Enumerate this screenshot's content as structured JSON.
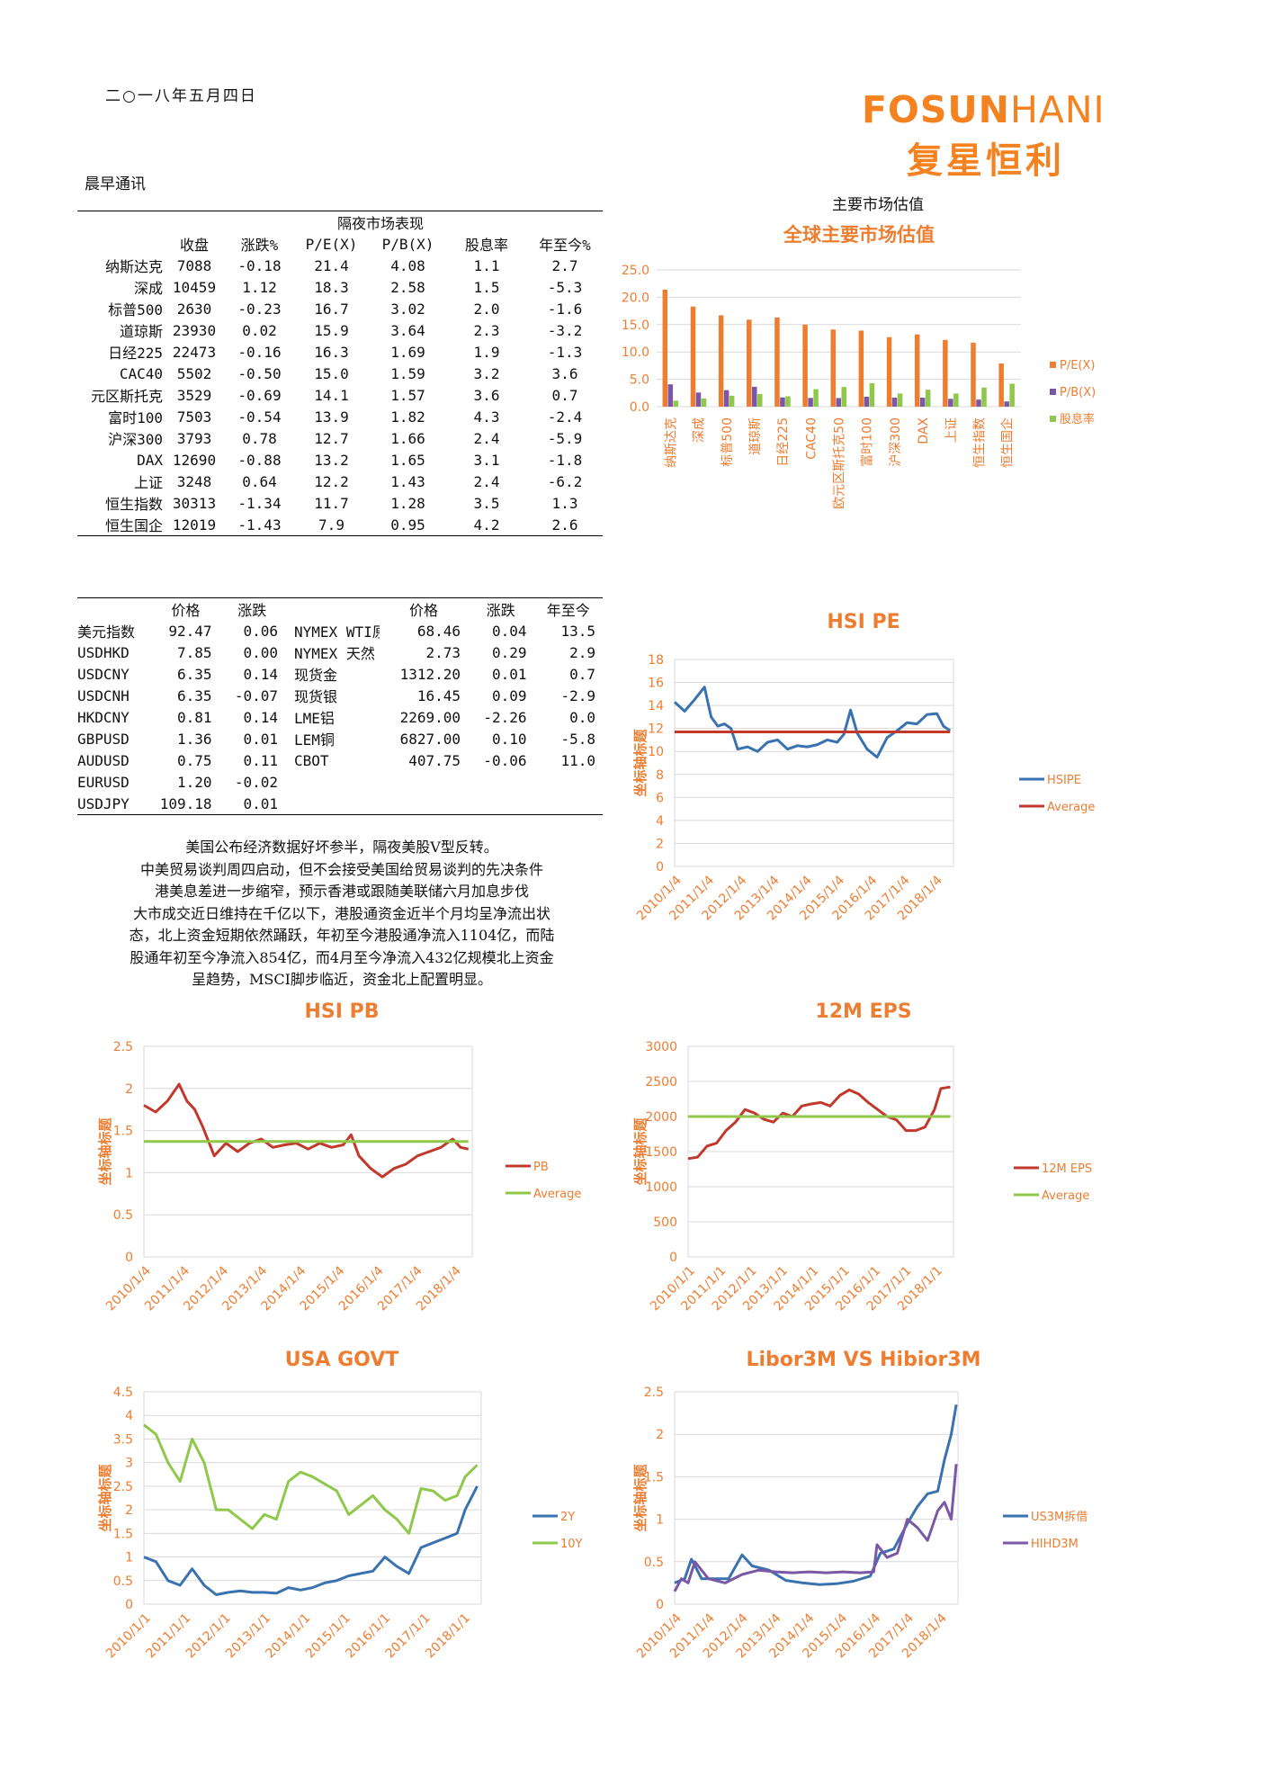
{
  "header": {
    "date": "二○一八年五月四日",
    "logo_en_bold": "FOSUN",
    "logo_en_thin": "HANI",
    "logo_cn": "复星恒利",
    "report_name": "晨早通讯"
  },
  "overnight": {
    "title": "隔夜市场表现",
    "columns": [
      "收盘",
      "涨跌%",
      "P/E(X)",
      "P/B(X)",
      "股息率",
      "年至今%"
    ],
    "rows": [
      [
        "纳斯达克",
        "7088",
        "-0.18",
        "21.4",
        "4.08",
        "1.1",
        "2.7"
      ],
      [
        "深成",
        "10459",
        "1.12",
        "18.3",
        "2.58",
        "1.5",
        "-5.3"
      ],
      [
        "标普500",
        "2630",
        "-0.23",
        "16.7",
        "3.02",
        "2.0",
        "-1.6"
      ],
      [
        "道琼斯",
        "23930",
        "0.02",
        "15.9",
        "3.64",
        "2.3",
        "-3.2"
      ],
      [
        "日经225",
        "22473",
        "-0.16",
        "16.3",
        "1.69",
        "1.9",
        "-1.3"
      ],
      [
        "CAC40",
        "5502",
        "-0.50",
        "15.0",
        "1.59",
        "3.2",
        "3.6"
      ],
      [
        "元区斯托克",
        "3529",
        "-0.69",
        "14.1",
        "1.57",
        "3.6",
        "0.7"
      ],
      [
        "富时100",
        "7503",
        "-0.54",
        "13.9",
        "1.82",
        "4.3",
        "-2.4"
      ],
      [
        "沪深300",
        "3793",
        "0.78",
        "12.7",
        "1.66",
        "2.4",
        "-5.9"
      ],
      [
        "DAX",
        "12690",
        "-0.88",
        "13.2",
        "1.65",
        "3.1",
        "-1.8"
      ],
      [
        "上证",
        "3248",
        "0.64",
        "12.2",
        "1.43",
        "2.4",
        "-6.2"
      ],
      [
        "恒生指数",
        "30313",
        "-1.34",
        "11.7",
        "1.28",
        "3.5",
        "1.3"
      ],
      [
        "恒生国企",
        "12019",
        "-1.43",
        "7.9",
        "0.95",
        "4.2",
        "2.6"
      ]
    ]
  },
  "fx": {
    "columns": [
      "价格",
      "涨跌",
      "价格",
      "涨跌",
      "年至今"
    ],
    "rows": [
      [
        "美元指数",
        "92.47",
        "0.06",
        "NYMEX WTI原",
        "68.46",
        "0.04",
        "13.5"
      ],
      [
        "USDHKD",
        "7.85",
        "0.00",
        "NYMEX 天然",
        "2.73",
        "0.29",
        "2.9"
      ],
      [
        "USDCNY",
        "6.35",
        "0.14",
        "现货金",
        "1312.20",
        "0.01",
        "0.7"
      ],
      [
        "USDCNH",
        "6.35",
        "-0.07",
        "现货银",
        "16.45",
        "0.09",
        "-2.9"
      ],
      [
        "HKDCNY",
        "0.81",
        "0.14",
        "LME铝",
        "2269.00",
        "-2.26",
        "0.0"
      ],
      [
        "GBPUSD",
        "1.36",
        "0.01",
        "LEM铜",
        "6827.00",
        "0.10",
        "-5.8"
      ],
      [
        "AUDUSD",
        "0.75",
        "0.11",
        "CBOT",
        "407.75",
        "-0.06",
        "11.0"
      ],
      [
        "EURUSD",
        "1.20",
        "-0.02",
        "",
        "",
        "",
        ""
      ],
      [
        "USDJPY",
        "109.18",
        "0.01",
        "",
        "",
        "",
        ""
      ]
    ]
  },
  "commentary": [
    "美国公布经济数据好坏参半，隔夜美股V型反转。",
    "中美贸易谈判周四启动，但不会接受美国给贸易谈判的先决条件",
    "港美息差进一步缩窄，预示香港或跟随美联储六月加息步伐",
    "大市成交近日维持在千亿以下，港股通资金近半个月均呈净流出状",
    "态，北上资金短期依然踊跃，年初至今港股通净流入1104亿，而陆",
    "股通年初至今净流入854亿，而4月至今净流入432亿规模北上资金",
    "呈趋势，MSCI脚步临近，资金北上配置明显。"
  ],
  "section_title": "主要市场估值",
  "colors": {
    "orange": "#ed7d31",
    "purple": "#7a58a6",
    "green": "#8fc84b",
    "blue": "#3a72b0",
    "red": "#c0392b",
    "title": "#ed7d31",
    "grid": "#d9d9d9"
  },
  "chart_data": [
    {
      "id": "valuation",
      "type": "bar",
      "title": "全球主要市场估值",
      "categories": [
        "纳斯达克",
        "深成",
        "标普500",
        "道琼斯",
        "日经225",
        "CAC40",
        "欧元区斯托克50",
        "富时100",
        "沪深300",
        "DAX",
        "上证",
        "恒生指数",
        "恒生国企"
      ],
      "series": [
        {
          "name": "P/E(X)",
          "values": [
            21.4,
            18.3,
            16.7,
            15.9,
            16.3,
            15.0,
            14.1,
            13.9,
            12.7,
            13.2,
            12.2,
            11.7,
            7.9
          ]
        },
        {
          "name": "P/B(X)",
          "values": [
            4.08,
            2.58,
            3.02,
            3.64,
            1.69,
            1.59,
            1.57,
            1.82,
            1.66,
            1.65,
            1.43,
            1.28,
            0.95
          ]
        },
        {
          "name": "股息率",
          "values": [
            1.1,
            1.5,
            2.0,
            2.3,
            1.9,
            3.2,
            3.6,
            4.3,
            2.4,
            3.1,
            2.4,
            3.5,
            4.2
          ]
        }
      ],
      "ylim": [
        0,
        25
      ],
      "yticks": [
        "0.0",
        "5.0",
        "10.0",
        "15.0",
        "20.0",
        "25.0"
      ],
      "legend": "right"
    },
    {
      "id": "hsipe",
      "type": "line",
      "title": "HSI PE",
      "ylabel": "坐标轴标题",
      "xticks": [
        "2010/1/4",
        "2011/1/4",
        "2012/1/4",
        "2013/1/4",
        "2014/1/4",
        "2015/1/4",
        "2016/1/4",
        "2017/1/4",
        "2018/1/4"
      ],
      "ylim": [
        0,
        18
      ],
      "yticks": [
        "0",
        "2",
        "4",
        "6",
        "8",
        "10",
        "12",
        "14",
        "16",
        "18"
      ],
      "series": [
        {
          "name": "HSIPE",
          "x": [
            2010.0,
            2010.3,
            2010.6,
            2010.9,
            2011.1,
            2011.3,
            2011.5,
            2011.7,
            2011.9,
            2012.2,
            2012.5,
            2012.8,
            2013.1,
            2013.4,
            2013.7,
            2014.0,
            2014.3,
            2014.6,
            2014.9,
            2015.1,
            2015.3,
            2015.5,
            2015.8,
            2016.1,
            2016.4,
            2016.7,
            2017.0,
            2017.3,
            2017.6,
            2017.9,
            2018.1,
            2018.3
          ],
          "y": [
            14.3,
            13.5,
            14.5,
            15.6,
            13.0,
            12.2,
            12.4,
            12.0,
            10.2,
            10.4,
            10.0,
            10.8,
            11.0,
            10.2,
            10.5,
            10.4,
            10.6,
            11.0,
            10.8,
            11.5,
            13.6,
            11.6,
            10.2,
            9.5,
            11.2,
            11.8,
            12.5,
            12.4,
            13.2,
            13.3,
            12.2,
            11.8
          ]
        },
        {
          "name": "Average",
          "x": [
            2010.0,
            2018.3
          ],
          "y": [
            11.7,
            11.7
          ]
        }
      ],
      "legend": "right"
    },
    {
      "id": "hsipb",
      "type": "line",
      "title": "HSI PB",
      "ylabel": "坐标轴标题",
      "xticks": [
        "2010/1/4",
        "2011/1/4",
        "2012/1/4",
        "2013/1/4",
        "2014/1/4",
        "2015/1/4",
        "2016/1/4",
        "2017/1/4",
        "2018/1/4"
      ],
      "ylim": [
        0,
        2.5
      ],
      "yticks": [
        "0",
        "0.5",
        "1",
        "1.5",
        "2",
        "2.5"
      ],
      "series": [
        {
          "name": "PB",
          "x": [
            2010.0,
            2010.3,
            2010.6,
            2010.9,
            2011.1,
            2011.3,
            2011.5,
            2011.8,
            2012.1,
            2012.4,
            2012.7,
            2013.0,
            2013.3,
            2013.6,
            2013.9,
            2014.2,
            2014.5,
            2014.8,
            2015.1,
            2015.3,
            2015.5,
            2015.8,
            2016.1,
            2016.4,
            2016.7,
            2017.0,
            2017.3,
            2017.6,
            2017.9,
            2018.1,
            2018.3
          ],
          "y": [
            1.8,
            1.72,
            1.85,
            2.05,
            1.85,
            1.75,
            1.55,
            1.2,
            1.35,
            1.25,
            1.35,
            1.4,
            1.3,
            1.33,
            1.35,
            1.28,
            1.35,
            1.3,
            1.33,
            1.45,
            1.2,
            1.05,
            0.95,
            1.05,
            1.1,
            1.2,
            1.25,
            1.3,
            1.4,
            1.3,
            1.28
          ]
        },
        {
          "name": "Average",
          "x": [
            2010.0,
            2018.3
          ],
          "y": [
            1.37,
            1.37
          ]
        }
      ],
      "legend": "right"
    },
    {
      "id": "eps",
      "type": "line",
      "title": "12M EPS",
      "ylabel": "坐标轴标题",
      "xticks": [
        "2010/1/1",
        "2011/1/1",
        "2012/1/1",
        "2013/1/1",
        "2014/1/1",
        "2015/1/1",
        "2016/1/1",
        "2017/1/1",
        "2018/1/1"
      ],
      "ylim": [
        0,
        3000
      ],
      "yticks": [
        "0",
        "500",
        "1000",
        "1500",
        "2000",
        "2500",
        "3000"
      ],
      "series": [
        {
          "name": "12M EPS",
          "x": [
            2010.0,
            2010.3,
            2010.6,
            2010.9,
            2011.2,
            2011.5,
            2011.8,
            2012.1,
            2012.4,
            2012.7,
            2013.0,
            2013.3,
            2013.6,
            2013.9,
            2014.2,
            2014.5,
            2014.8,
            2015.1,
            2015.4,
            2015.7,
            2016.0,
            2016.3,
            2016.6,
            2016.9,
            2017.2,
            2017.5,
            2017.8,
            2018.0,
            2018.3
          ],
          "y": [
            1400,
            1420,
            1580,
            1620,
            1800,
            1920,
            2100,
            2050,
            1960,
            1920,
            2050,
            2000,
            2150,
            2180,
            2200,
            2150,
            2300,
            2380,
            2320,
            2200,
            2100,
            2000,
            1950,
            1800,
            1800,
            1850,
            2100,
            2400,
            2420
          ]
        },
        {
          "name": "Average",
          "x": [
            2010.0,
            2018.3
          ],
          "y": [
            2000,
            2000
          ]
        }
      ],
      "legend": "right"
    },
    {
      "id": "govt",
      "type": "line",
      "title": "USA GOVT",
      "ylabel": "坐标轴标题",
      "xticks": [
        "2010/1/1",
        "2011/1/1",
        "2012/1/1",
        "2013/1/1",
        "2014/1/1",
        "2015/1/1",
        "2016/1/1",
        "2017/1/1",
        "2018/1/1"
      ],
      "ylim": [
        0,
        4.5
      ],
      "yticks": [
        "0",
        "0.5",
        "1",
        "1.5",
        "2",
        "2.5",
        "3",
        "3.5",
        "4",
        "4.5"
      ],
      "series": [
        {
          "name": "2Y",
          "x": [
            2010.0,
            2010.3,
            2010.6,
            2010.9,
            2011.2,
            2011.5,
            2011.8,
            2012.1,
            2012.4,
            2012.7,
            2013.0,
            2013.3,
            2013.6,
            2013.9,
            2014.2,
            2014.5,
            2014.8,
            2015.1,
            2015.4,
            2015.7,
            2016.0,
            2016.3,
            2016.6,
            2016.9,
            2017.2,
            2017.5,
            2017.8,
            2018.0,
            2018.3
          ],
          "y": [
            1.0,
            0.9,
            0.5,
            0.4,
            0.75,
            0.4,
            0.2,
            0.25,
            0.28,
            0.25,
            0.25,
            0.23,
            0.35,
            0.3,
            0.35,
            0.45,
            0.5,
            0.6,
            0.65,
            0.7,
            1.0,
            0.8,
            0.65,
            1.2,
            1.3,
            1.4,
            1.5,
            2.0,
            2.5
          ]
        },
        {
          "name": "10Y",
          "x": [
            2010.0,
            2010.3,
            2010.6,
            2010.9,
            2011.2,
            2011.5,
            2011.8,
            2012.1,
            2012.4,
            2012.7,
            2013.0,
            2013.3,
            2013.6,
            2013.9,
            2014.2,
            2014.5,
            2014.8,
            2015.1,
            2015.4,
            2015.7,
            2016.0,
            2016.3,
            2016.6,
            2016.9,
            2017.2,
            2017.5,
            2017.8,
            2018.0,
            2018.3
          ],
          "y": [
            3.8,
            3.6,
            3.0,
            2.6,
            3.5,
            3.0,
            2.0,
            2.0,
            1.8,
            1.6,
            1.9,
            1.8,
            2.6,
            2.8,
            2.7,
            2.55,
            2.4,
            1.9,
            2.1,
            2.3,
            2.0,
            1.8,
            1.5,
            2.45,
            2.4,
            2.2,
            2.3,
            2.7,
            2.95
          ]
        }
      ],
      "legend": "right"
    },
    {
      "id": "libor",
      "type": "line",
      "title": "Libor3M VS Hibior3M",
      "ylabel": "坐标轴标题",
      "xticks": [
        "2010/1/4",
        "2011/1/4",
        "2012/1/4",
        "2013/1/4",
        "2014/1/4",
        "2015/1/4",
        "2016/1/4",
        "2017/1/4",
        "2018/1/4"
      ],
      "ylim": [
        0,
        2.5
      ],
      "yticks": [
        "0",
        "0.5",
        "1",
        "1.5",
        "2",
        "2.5"
      ],
      "series": [
        {
          "name": "US3M拆借",
          "x": [
            2010.0,
            2010.3,
            2010.5,
            2010.8,
            2011.2,
            2011.6,
            2012.0,
            2012.3,
            2012.8,
            2013.3,
            2013.8,
            2014.3,
            2014.8,
            2015.3,
            2015.8,
            2016.1,
            2016.5,
            2016.9,
            2017.2,
            2017.5,
            2017.8,
            2018.0,
            2018.2,
            2018.35
          ],
          "y": [
            0.25,
            0.3,
            0.53,
            0.3,
            0.3,
            0.3,
            0.58,
            0.45,
            0.4,
            0.28,
            0.25,
            0.23,
            0.24,
            0.27,
            0.33,
            0.6,
            0.65,
            0.95,
            1.15,
            1.3,
            1.33,
            1.7,
            2.0,
            2.35
          ]
        },
        {
          "name": "HIHD3M",
          "x": [
            2010.0,
            2010.2,
            2010.4,
            2010.6,
            2011.0,
            2011.5,
            2012.0,
            2012.5,
            2013.0,
            2013.5,
            2014.0,
            2014.5,
            2015.0,
            2015.5,
            2015.9,
            2016.0,
            2016.3,
            2016.6,
            2016.9,
            2017.2,
            2017.5,
            2017.8,
            2018.0,
            2018.2,
            2018.35
          ],
          "y": [
            0.15,
            0.3,
            0.25,
            0.5,
            0.3,
            0.25,
            0.35,
            0.4,
            0.38,
            0.37,
            0.38,
            0.37,
            0.38,
            0.37,
            0.38,
            0.7,
            0.55,
            0.6,
            1.0,
            0.9,
            0.75,
            1.1,
            1.2,
            1.0,
            1.65
          ]
        }
      ],
      "legend": "right"
    }
  ]
}
